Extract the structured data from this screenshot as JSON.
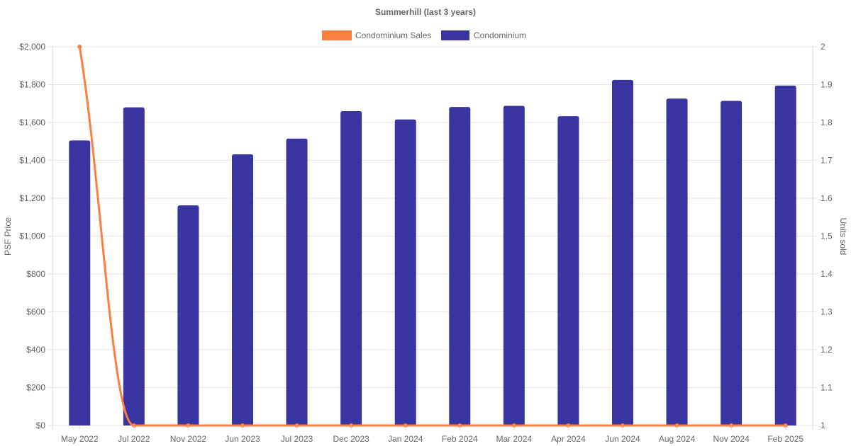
{
  "chart_data": {
    "type": "bar",
    "title": "Summerhill (last 3 years)",
    "categories": [
      "May 2022",
      "Jul 2022",
      "Nov 2022",
      "Jun 2023",
      "Jul 2023",
      "Dec 2023",
      "Jan 2024",
      "Feb 2024",
      "Mar 2024",
      "Apr 2024",
      "Jun 2024",
      "Aug 2024",
      "Nov 2024",
      "Feb 2025"
    ],
    "series": [
      {
        "name": "Condominium Sales",
        "type": "line",
        "axis": "right",
        "color": "#fd7f40",
        "values": [
          2,
          1,
          1,
          1,
          1,
          1,
          1,
          1,
          1,
          1,
          1,
          1,
          1,
          1
        ]
      },
      {
        "name": "Condominium",
        "type": "bar",
        "axis": "left",
        "color": "#3934a0",
        "values": [
          1505,
          1680,
          1162,
          1432,
          1515,
          1660,
          1616,
          1682,
          1688,
          1633,
          1825,
          1726,
          1714,
          1795
        ]
      }
    ],
    "ylabel": "PSF Price",
    "ylim": [
      0,
      2000
    ],
    "yticks": [
      "$0",
      "$200",
      "$400",
      "$600",
      "$800",
      "$1,000",
      "$1,200",
      "$1,400",
      "$1,600",
      "$1,800",
      "$2,000"
    ],
    "y2label": "Units sold",
    "y2lim": [
      1,
      2
    ],
    "y2ticks": [
      "1",
      "1.1",
      "1.2",
      "1.3",
      "1.4",
      "1.5",
      "1.6",
      "1.7",
      "1.8",
      "1.9",
      "2"
    ],
    "grid": true,
    "legend": "top-center"
  }
}
